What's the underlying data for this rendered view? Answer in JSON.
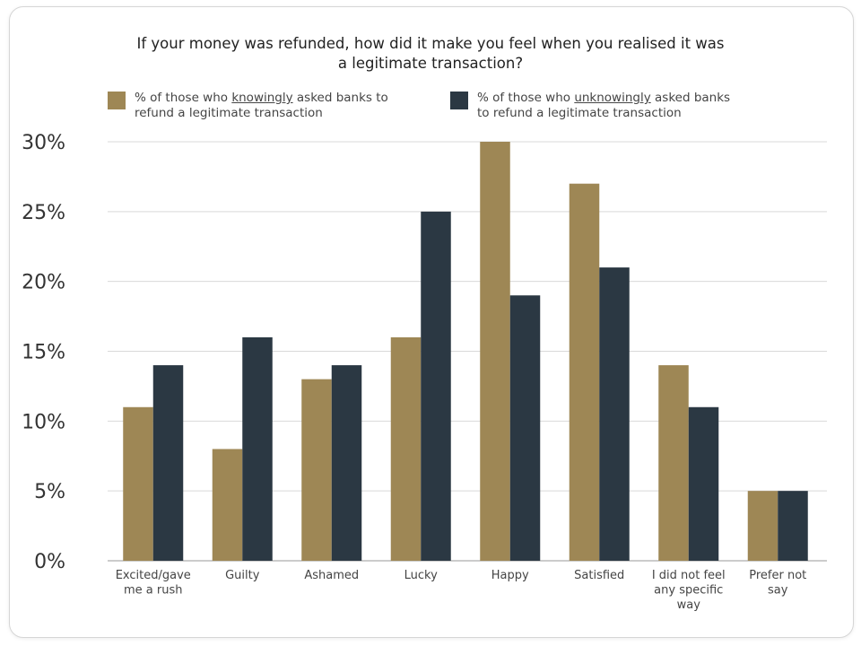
{
  "chart_data": {
    "type": "bar",
    "title": "If your money was refunded, how did it make you feel when you realised it was a legitimate transaction?",
    "title_lines": [
      "If your money was refunded, how did it make you feel when you realised it was",
      "a legitimate transaction?"
    ],
    "categories": [
      [
        "Excited/gave",
        "me a rush"
      ],
      [
        "Guilty"
      ],
      [
        "Ashamed"
      ],
      [
        "Lucky"
      ],
      [
        "Happy"
      ],
      [
        "Satisfied"
      ],
      [
        "I did not feel",
        "any specific",
        "way"
      ],
      [
        "Prefer not",
        "say"
      ]
    ],
    "series": [
      {
        "name": "% of those who knowingly asked banks to refund a legitimate transaction",
        "color": "#9e8755",
        "values": [
          11,
          8,
          13,
          16,
          30,
          27,
          14,
          5
        ]
      },
      {
        "name": "% of those who unknowingly asked banks to refund a legitimate transaction",
        "color": "#2b3843",
        "values": [
          14,
          16,
          14,
          25,
          19,
          21,
          11,
          5
        ]
      }
    ],
    "ylim": [
      0,
      30
    ],
    "yticks": [
      0,
      5,
      10,
      15,
      20,
      25,
      30
    ],
    "ytick_labels": [
      "0%",
      "5%",
      "10%",
      "15%",
      "20%",
      "25%",
      "30%"
    ],
    "grid": true,
    "legend_position": "top",
    "xlabel": "",
    "ylabel": ""
  },
  "legend": [
    {
      "pre": "% of those who ",
      "u": "knowingly",
      "post": " asked banks to",
      "line2": "refund a legitimate transaction"
    },
    {
      "pre": "% of those who ",
      "u": "unknowingly",
      "post": " asked banks",
      "line2": "to refund a legitimate transaction"
    }
  ]
}
